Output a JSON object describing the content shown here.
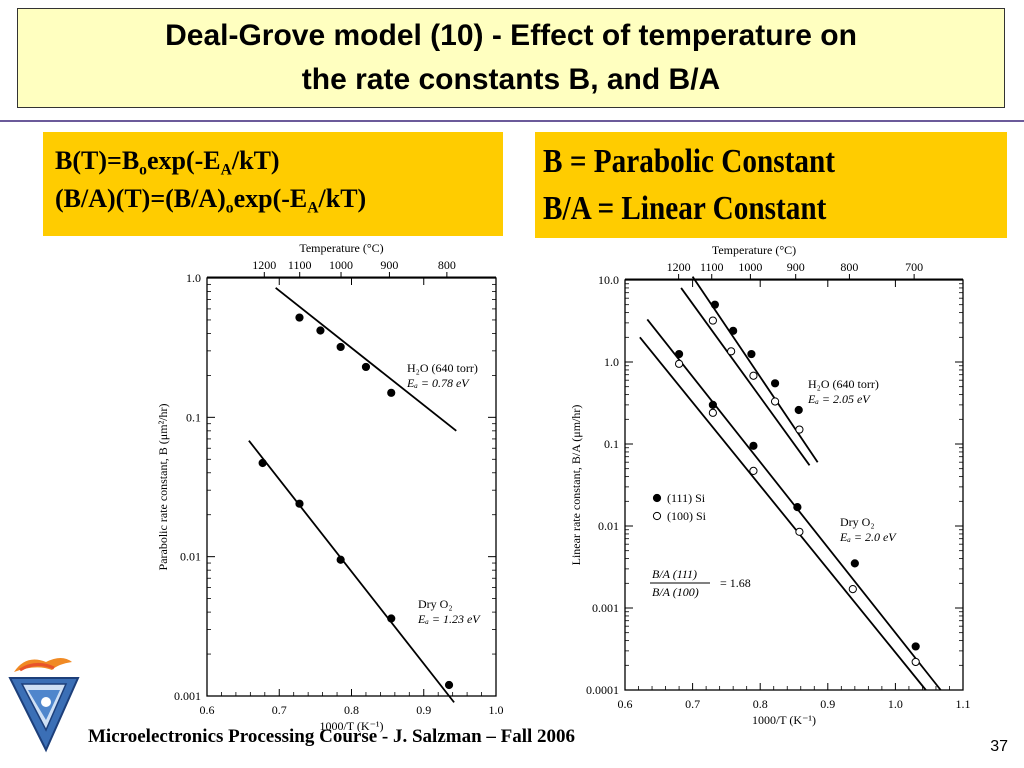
{
  "slide": {
    "title_line1": "Deal-Grove model (10) - Effect of temperature on",
    "title_line2": "the rate constants B, and B/A",
    "footer": "Microelectronics Processing Course - J. Salzman – Fall 2006",
    "page_number": "37"
  },
  "equations": {
    "eq1": {
      "a": "B(T)=B",
      "sub1": "o",
      "b": "exp(-E",
      "sub2": "A",
      "c": "/kT)"
    },
    "eq2": {
      "a": "(B/A)(T)=(B/A)",
      "sub1": "o",
      "b": "exp(-E",
      "sub2": "A",
      "c": "/kT)"
    }
  },
  "definitions": {
    "line1": "B  = Parabolic Constant",
    "line2": "B/A = Linear Constant"
  },
  "chart_data": [
    {
      "type": "scatter",
      "title": "",
      "x_label": "1000/T (K⁻¹)",
      "y_label": "Parabolic rate constant, B (μm²/hr)",
      "top_axis_label": "Temperature (°C)",
      "x_range": [
        0.6,
        1.0
      ],
      "y_range": [
        0.001,
        1.0
      ],
      "y_scale": "log",
      "x_ticks": [
        "0.6",
        "0.7",
        "0.8",
        "0.9",
        "1.0"
      ],
      "y_ticks": [
        "1.0",
        "0.1",
        "0.01",
        "0.001"
      ],
      "top_ticks": [
        {
          "label": "1200",
          "x": 0.6793
        },
        {
          "label": "1100",
          "x": 0.7283
        },
        {
          "label": "1000",
          "x": 0.7855
        },
        {
          "label": "900",
          "x": 0.8525
        },
        {
          "label": "800",
          "x": 0.932
        }
      ],
      "series": [
        {
          "annotation_line1": "H₂O (640 torr)",
          "annotation_line2": "Eₐ = 0.78 eV",
          "points": [
            [
              0.728,
              0.52
            ],
            [
              0.757,
              0.42
            ],
            [
              0.785,
              0.32
            ],
            [
              0.82,
              0.23
            ],
            [
              0.855,
              0.15
            ]
          ],
          "fit": [
            [
              0.695,
              0.85
            ],
            [
              0.945,
              0.08
            ]
          ]
        },
        {
          "annotation_line1": "Dry O₂",
          "annotation_line2": "Eₐ = 1.23 eV",
          "points": [
            [
              0.677,
              0.047
            ],
            [
              0.728,
              0.024
            ],
            [
              0.785,
              0.0095
            ],
            [
              0.855,
              0.0036
            ],
            [
              0.935,
              0.0012
            ]
          ],
          "fit": [
            [
              0.658,
              0.068
            ],
            [
              0.942,
              0.0009
            ]
          ]
        }
      ]
    },
    {
      "type": "scatter",
      "title": "",
      "x_label": "1000/T (K⁻¹)",
      "y_label": "Linear rate constant, B/A (μm/hr)",
      "top_axis_label": "Temperature (°C)",
      "x_range": [
        0.6,
        1.1
      ],
      "y_range": [
        0.0001,
        10.0
      ],
      "y_scale": "log",
      "x_ticks": [
        "0.6",
        "0.7",
        "0.8",
        "0.9",
        "1.0",
        "1.1"
      ],
      "y_ticks": [
        "10.0",
        "1.0",
        "0.1",
        "0.01",
        "0.001",
        "0.0001"
      ],
      "top_ticks": [
        {
          "label": "1200",
          "x": 0.6793
        },
        {
          "label": "1100",
          "x": 0.7283
        },
        {
          "label": "1000",
          "x": 0.7855
        },
        {
          "label": "900",
          "x": 0.8525
        },
        {
          "label": "800",
          "x": 0.932
        },
        {
          "label": "700",
          "x": 1.0277
        }
      ],
      "legend": [
        "(111) Si",
        "(100) Si"
      ],
      "ratio_text": {
        "num": "B/A (111)",
        "den": "B/A (100)",
        "val": "= 1.68"
      },
      "series": [
        {
          "name": "H₂O (640 torr) (111)",
          "filled": true,
          "annotation_line1": "H₂O (640 torr)",
          "annotation_line2": "Eₐ = 2.05 eV",
          "points": [
            [
              0.733,
              5.0
            ],
            [
              0.76,
              2.4
            ],
            [
              0.787,
              1.25
            ],
            [
              0.822,
              0.55
            ],
            [
              0.857,
              0.26
            ]
          ],
          "fit": [
            [
              0.7,
              11.0
            ],
            [
              0.885,
              0.06
            ]
          ]
        },
        {
          "name": "H₂O (640 torr) (100)",
          "filled": false,
          "points": [
            [
              0.73,
              3.2
            ],
            [
              0.757,
              1.35
            ],
            [
              0.79,
              0.68
            ],
            [
              0.822,
              0.33
            ],
            [
              0.858,
              0.15
            ]
          ],
          "fit": [
            [
              0.683,
              8.0
            ],
            [
              0.873,
              0.055
            ]
          ]
        },
        {
          "name": "Dry O₂ (111)",
          "filled": true,
          "annotation_line1": "Dry O₂",
          "annotation_line2": "Eₐ = 2.0 eV",
          "points": [
            [
              0.68,
              1.25
            ],
            [
              0.73,
              0.3
            ],
            [
              0.79,
              0.095
            ],
            [
              0.855,
              0.017
            ],
            [
              0.94,
              0.0035
            ],
            [
              1.03,
              0.00034
            ]
          ],
          "fit": [
            [
              0.633,
              3.3
            ],
            [
              1.067,
              0.0001
            ]
          ]
        },
        {
          "name": "Dry O₂ (100)",
          "filled": false,
          "points": [
            [
              0.68,
              0.95
            ],
            [
              0.73,
              0.24
            ],
            [
              0.79,
              0.047
            ],
            [
              0.858,
              0.0085
            ],
            [
              0.937,
              0.0017
            ],
            [
              1.03,
              0.00022
            ]
          ],
          "fit": [
            [
              0.622,
              2.0
            ],
            [
              1.045,
              0.0001
            ]
          ]
        }
      ]
    }
  ]
}
